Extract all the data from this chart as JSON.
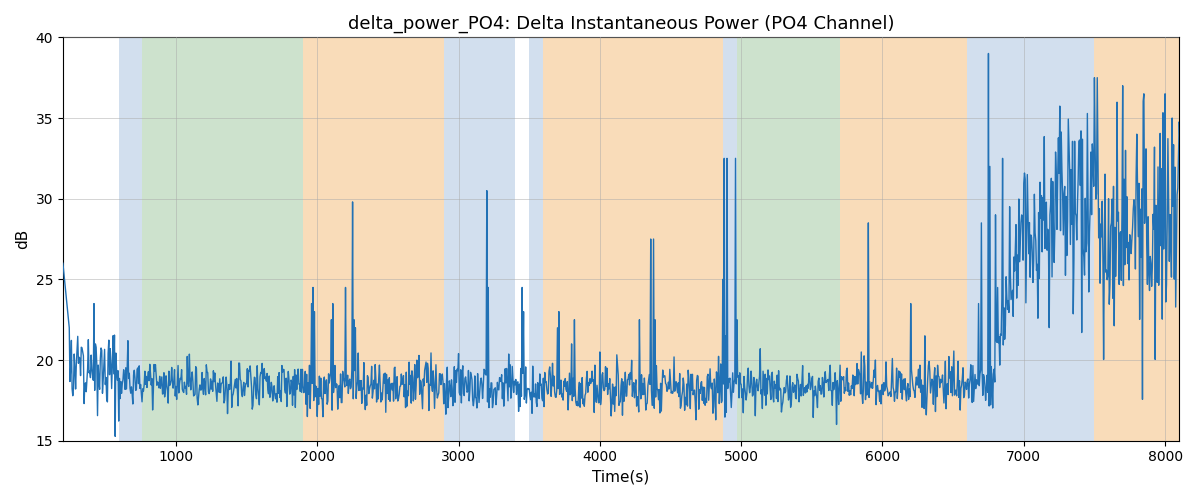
{
  "title": "delta_power_PO4: Delta Instantaneous Power (PO4 Channel)",
  "xlabel": "Time(s)",
  "ylabel": "dB",
  "xlim": [
    200,
    8100
  ],
  "ylim": [
    15,
    40
  ],
  "yticks": [
    15,
    20,
    25,
    30,
    35,
    40
  ],
  "xticks": [
    1000,
    2000,
    3000,
    4000,
    5000,
    6000,
    7000,
    8000
  ],
  "line_color": "#2171b5",
  "line_width": 1.0,
  "bg_color": "#ffffff",
  "grid_color": "#aaaaaa",
  "title_fontsize": 13,
  "label_fontsize": 11,
  "regions": [
    {
      "xstart": 600,
      "xend": 760,
      "color": "#aec6e0",
      "alpha": 0.55
    },
    {
      "xstart": 760,
      "xend": 1900,
      "color": "#90c090",
      "alpha": 0.45
    },
    {
      "xstart": 1900,
      "xend": 2900,
      "color": "#f5c080",
      "alpha": 0.55
    },
    {
      "xstart": 2900,
      "xend": 3400,
      "color": "#aec6e0",
      "alpha": 0.55
    },
    {
      "xstart": 3500,
      "xend": 3600,
      "color": "#aec6e0",
      "alpha": 0.55
    },
    {
      "xstart": 3600,
      "xend": 4870,
      "color": "#f5c080",
      "alpha": 0.55
    },
    {
      "xstart": 4870,
      "xend": 4970,
      "color": "#aec6e0",
      "alpha": 0.55
    },
    {
      "xstart": 4970,
      "xend": 5700,
      "color": "#90c090",
      "alpha": 0.45
    },
    {
      "xstart": 5700,
      "xend": 6600,
      "color": "#f5c080",
      "alpha": 0.55
    },
    {
      "xstart": 6600,
      "xend": 7500,
      "color": "#aec6e0",
      "alpha": 0.55
    },
    {
      "xstart": 7500,
      "xend": 8200,
      "color": "#f5c080",
      "alpha": 0.55
    }
  ],
  "seed": 42
}
